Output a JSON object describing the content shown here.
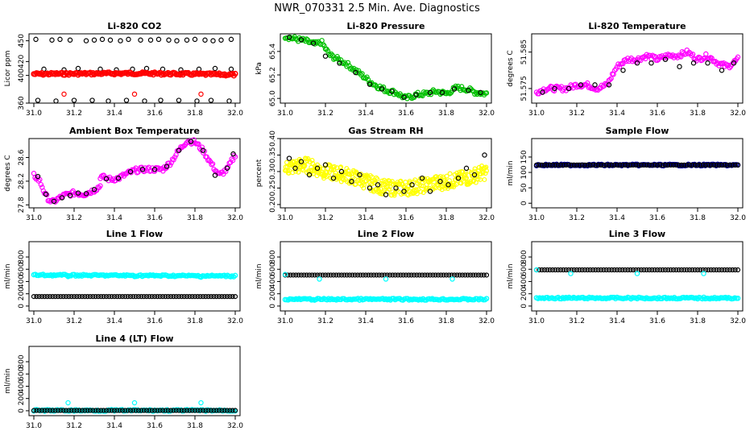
{
  "figure_title": "NWR_070331  2.5 Min. Ave. Diagnostics",
  "chart_data": [
    {
      "id": "co2",
      "type": "scatter",
      "title": "Li-820 CO2",
      "ylabel": "Licor ppm",
      "xlim": [
        31.0,
        32.0
      ],
      "ylim": [
        360,
        460
      ],
      "xticks": [
        "31.0",
        "31.2",
        "31.4",
        "31.6",
        "31.8",
        "32.0"
      ],
      "yticks": [
        "360",
        "400",
        "420",
        "450"
      ],
      "series": [
        {
          "color": "#000000",
          "style": "open-circle",
          "x": [
            31.01,
            31.09,
            31.13,
            31.18,
            31.26,
            31.3,
            31.34,
            31.38,
            31.43,
            31.47,
            31.53,
            31.58,
            31.62,
            31.67,
            31.71,
            31.76,
            31.8,
            31.85,
            31.89,
            31.93,
            31.98
          ],
          "y": [
            452,
            451,
            452,
            451,
            450,
            451,
            452,
            451,
            450,
            452,
            451,
            451,
            452,
            451,
            450,
            451,
            452,
            451,
            450,
            451,
            452
          ]
        },
        {
          "color": "#000000",
          "style": "open-circle",
          "x": [
            31.05,
            31.15,
            31.22,
            31.33,
            31.41,
            31.49,
            31.56,
            31.64,
            31.73,
            31.82,
            31.9,
            31.98
          ],
          "y": [
            409,
            408,
            410,
            409,
            408,
            409,
            410,
            409,
            408,
            409,
            410,
            409
          ]
        },
        {
          "color": "#000000",
          "style": "open-circle",
          "x": [
            31.02,
            31.11,
            31.2,
            31.29,
            31.37,
            31.46,
            31.55,
            31.63,
            31.72,
            31.81,
            31.88,
            31.97
          ],
          "y": [
            364,
            363,
            364,
            364,
            363,
            364,
            363,
            364,
            364,
            363,
            364,
            363
          ]
        },
        {
          "color": "#ff0000",
          "style": "open-circle",
          "x": [
            31.15,
            31.5,
            31.83
          ],
          "y": [
            373,
            373,
            373
          ]
        },
        {
          "color": "#ff0000",
          "style": "band",
          "x": [
            31.0,
            31.25,
            31.5,
            31.75,
            32.0
          ],
          "y": [
            402,
            402.5,
            403,
            402,
            401
          ]
        }
      ]
    },
    {
      "id": "pressure",
      "type": "scatter",
      "title": "Li-820 Pressure",
      "ylabel": "kPa",
      "xlim": [
        31.0,
        32.0
      ],
      "ylim": [
        64.96,
        65.55
      ],
      "xticks": [
        "31.0",
        "31.2",
        "31.4",
        "31.6",
        "31.8",
        "32.0"
      ],
      "yticks": [
        "65.0",
        "65.2",
        "65.4"
      ],
      "series": [
        {
          "color": "#00c000",
          "style": "dense-line",
          "x": [
            31.0,
            31.04,
            31.1,
            31.15,
            31.18,
            31.22,
            31.3,
            31.38,
            31.44,
            31.5,
            31.55,
            31.6,
            31.65,
            31.7,
            31.75,
            31.8,
            31.85,
            31.9,
            31.95,
            32.0
          ],
          "y": [
            65.53,
            65.51,
            65.49,
            65.46,
            65.48,
            65.37,
            65.3,
            65.2,
            65.12,
            65.07,
            65.05,
            65.0,
            65.03,
            65.04,
            65.06,
            65.04,
            65.09,
            65.08,
            65.05,
            65.04
          ]
        },
        {
          "color": "#000000",
          "style": "open-circle",
          "x": [
            31.02,
            31.08,
            31.14,
            31.2,
            31.27,
            31.35,
            31.42,
            31.48,
            31.53,
            31.59,
            31.65,
            31.72,
            31.78,
            31.84,
            31.91,
            31.97
          ],
          "y": [
            65.52,
            65.5,
            65.47,
            65.36,
            65.3,
            65.22,
            65.12,
            65.08,
            65.06,
            65.01,
            65.03,
            65.05,
            65.05,
            65.08,
            65.07,
            65.05
          ]
        }
      ]
    },
    {
      "id": "temp",
      "type": "scatter",
      "title": "Li-820 Temperature",
      "ylabel": "degrees C",
      "xlim": [
        31.0,
        32.0
      ],
      "ylim": [
        51.571,
        51.59
      ],
      "xticks": [
        "31.0",
        "31.2",
        "31.4",
        "31.6",
        "31.8",
        "32.0"
      ],
      "yticks": [
        "51.575",
        "51.585"
      ],
      "series": [
        {
          "color": "#ff00ff",
          "style": "dense-line",
          "x": [
            31.0,
            31.05,
            31.1,
            31.15,
            31.2,
            31.25,
            31.3,
            31.35,
            31.4,
            31.45,
            31.5,
            31.55,
            31.6,
            31.65,
            31.7,
            31.75,
            31.8,
            31.85,
            31.9,
            31.95,
            32.0
          ],
          "y": [
            51.574,
            51.575,
            51.575,
            51.575,
            51.576,
            51.576,
            51.575,
            51.576,
            51.581,
            51.583,
            51.583,
            51.584,
            51.583,
            51.584,
            51.584,
            51.585,
            51.583,
            51.584,
            51.582,
            51.581,
            51.583
          ]
        },
        {
          "color": "#000000",
          "style": "open-circle",
          "x": [
            31.03,
            31.09,
            31.16,
            31.22,
            31.29,
            31.36,
            31.43,
            31.5,
            31.57,
            31.64,
            31.71,
            31.78,
            31.85,
            31.92,
            31.98
          ],
          "y": [
            51.574,
            51.575,
            51.575,
            51.576,
            51.576,
            51.576,
            51.58,
            51.582,
            51.582,
            51.583,
            51.581,
            51.582,
            51.582,
            51.58,
            51.582
          ]
        }
      ]
    },
    {
      "id": "ambient",
      "type": "scatter",
      "title": "Ambient Box Temperature",
      "ylabel": "degrees C",
      "xlim": [
        31.0,
        32.0
      ],
      "ylim": [
        27.75,
        28.92
      ],
      "xticks": [
        "31.0",
        "31.2",
        "31.4",
        "31.6",
        "31.8",
        "32.0"
      ],
      "yticks": [
        "27.8",
        "28.2",
        "28.6"
      ],
      "series": [
        {
          "color": "#ff00ff",
          "style": "dense-line",
          "x": [
            31.0,
            31.03,
            31.06,
            31.09,
            31.12,
            31.15,
            31.2,
            31.25,
            31.3,
            31.33
          ],
          "y": [
            28.3,
            28.2,
            27.95,
            27.84,
            27.9,
            27.96,
            28.0,
            27.98,
            28.05,
            28.12
          ]
        },
        {
          "color": "#ff00ff",
          "style": "dense-line",
          "x": [
            31.33,
            31.38,
            31.42,
            31.46,
            31.5,
            31.55,
            31.6,
            31.64,
            31.68,
            31.72,
            31.76,
            31.8,
            31.84,
            31.88,
            31.92,
            31.96,
            32.0
          ],
          "y": [
            28.28,
            28.23,
            28.25,
            28.32,
            28.38,
            28.4,
            28.4,
            28.4,
            28.52,
            28.72,
            28.88,
            28.86,
            28.72,
            28.5,
            28.3,
            28.4,
            28.65
          ]
        },
        {
          "color": "#000000",
          "style": "open-circle",
          "x": [
            31.02,
            31.06,
            31.1,
            31.14,
            31.18,
            31.22,
            31.26,
            31.3,
            31.36,
            31.42,
            31.48,
            31.54,
            31.6,
            31.66,
            31.72,
            31.78,
            31.84,
            31.9,
            31.96,
            31.99
          ],
          "y": [
            28.28,
            27.98,
            27.86,
            27.92,
            27.96,
            28.0,
            27.99,
            28.06,
            28.24,
            28.25,
            28.36,
            28.4,
            28.4,
            28.45,
            28.72,
            28.87,
            28.72,
            28.3,
            28.42,
            28.66
          ]
        }
      ]
    },
    {
      "id": "rh",
      "type": "scatter",
      "title": "Gas Stream RH",
      "ylabel": "percent",
      "xlim": [
        31.0,
        32.0
      ],
      "ylim": [
        0.19,
        0.4
      ],
      "xticks": [
        "31.0",
        "31.2",
        "31.4",
        "31.6",
        "31.8",
        "32.0"
      ],
      "yticks": [
        "0.20",
        "0.25",
        "0.30",
        "0.35",
        "0.40"
      ],
      "series": [
        {
          "color": "#ffff00",
          "style": "scatter-noise",
          "x": [
            31.0,
            31.1,
            31.2,
            31.3,
            31.4,
            31.5,
            31.6,
            31.7,
            31.8,
            31.9,
            32.0
          ],
          "y": [
            0.31,
            0.32,
            0.3,
            0.29,
            0.27,
            0.25,
            0.25,
            0.26,
            0.27,
            0.28,
            0.3
          ]
        },
        {
          "color": "#000000",
          "style": "open-circle",
          "x": [
            31.02,
            31.05,
            31.08,
            31.12,
            31.16,
            31.2,
            31.24,
            31.28,
            31.33,
            31.37,
            31.42,
            31.46,
            31.5,
            31.55,
            31.59,
            31.63,
            31.68,
            31.72,
            31.77,
            31.81,
            31.86,
            31.9,
            31.94,
            31.99
          ],
          "y": [
            0.34,
            0.31,
            0.33,
            0.29,
            0.31,
            0.32,
            0.28,
            0.3,
            0.27,
            0.29,
            0.25,
            0.26,
            0.23,
            0.25,
            0.24,
            0.26,
            0.28,
            0.24,
            0.27,
            0.26,
            0.28,
            0.31,
            0.29,
            0.35
          ]
        }
      ]
    },
    {
      "id": "sample",
      "type": "scatter",
      "title": "Sample Flow",
      "ylabel": "ml/min",
      "xlim": [
        31.0,
        32.0
      ],
      "ylim": [
        -15,
        210
      ],
      "xticks": [
        "31.0",
        "31.2",
        "31.4",
        "31.6",
        "31.8",
        "32.0"
      ],
      "yticks": [
        "0",
        "50",
        "100",
        "150"
      ],
      "series": [
        {
          "color": "#0000a0",
          "style": "flat",
          "x": [
            31.0,
            32.0
          ],
          "y": [
            124,
            124
          ]
        },
        {
          "color": "#000000",
          "style": "open-circle-row",
          "x": [
            31.0,
            32.0
          ],
          "y": [
            124,
            124
          ]
        }
      ]
    },
    {
      "id": "line1",
      "type": "scatter",
      "title": "Line 1 Flow",
      "ylabel": "ml/min",
      "xlim": [
        31.0,
        32.0
      ],
      "ylim": [
        -80,
        1050
      ],
      "xticks": [
        "31.0",
        "31.2",
        "31.4",
        "31.6",
        "31.8",
        "32.0"
      ],
      "yticks": [
        "0",
        "200",
        "400",
        "600",
        "800"
      ],
      "series": [
        {
          "color": "#00ffff",
          "style": "flat",
          "x": [
            31.0,
            32.0
          ],
          "y": [
            505,
            490
          ]
        },
        {
          "color": "#00ffff",
          "style": "open-circle",
          "x": [
            31.17,
            31.5,
            31.83
          ],
          "y": [
            480,
            480,
            470
          ]
        },
        {
          "color": "#000000",
          "style": "open-circle-row",
          "x": [
            31.0,
            32.0
          ],
          "y": [
            155,
            155
          ]
        }
      ]
    },
    {
      "id": "line2",
      "type": "scatter",
      "title": "Line 2 Flow",
      "ylabel": "ml/min",
      "xlim": [
        31.0,
        32.0
      ],
      "ylim": [
        -80,
        1050
      ],
      "xticks": [
        "31.0",
        "31.2",
        "31.4",
        "31.6",
        "31.8",
        "32.0"
      ],
      "yticks": [
        "0",
        "200",
        "400",
        "600",
        "800"
      ],
      "series": [
        {
          "color": "#000000",
          "style": "open-circle-row",
          "x": [
            31.0,
            32.0
          ],
          "y": [
            505,
            505
          ]
        },
        {
          "color": "#00ffff",
          "style": "open-circle",
          "x": [
            31.0,
            31.17,
            31.5,
            31.83
          ],
          "y": [
            515,
            440,
            440,
            440
          ]
        },
        {
          "color": "#00ffff",
          "style": "flat",
          "x": [
            31.0,
            32.0
          ],
          "y": [
            110,
            110
          ]
        }
      ]
    },
    {
      "id": "line3",
      "type": "scatter",
      "title": "Line 3 Flow",
      "ylabel": "ml/min",
      "xlim": [
        31.0,
        32.0
      ],
      "ylim": [
        -80,
        1050
      ],
      "xticks": [
        "31.0",
        "31.2",
        "31.4",
        "31.6",
        "31.8",
        "32.0"
      ],
      "yticks": [
        "0",
        "200",
        "400",
        "600",
        "800"
      ],
      "series": [
        {
          "color": "#000000",
          "style": "open-circle-row",
          "x": [
            31.0,
            32.0
          ],
          "y": [
            590,
            590
          ]
        },
        {
          "color": "#00ffff",
          "style": "open-circle",
          "x": [
            31.0,
            31.17,
            31.5,
            31.83
          ],
          "y": [
            590,
            530,
            530,
            530
          ]
        },
        {
          "color": "#00ffff",
          "style": "flat",
          "x": [
            31.0,
            32.0
          ],
          "y": [
            130,
            130
          ]
        }
      ]
    },
    {
      "id": "line4",
      "type": "scatter",
      "title": "Line 4 (LT) Flow",
      "ylabel": "ml/min",
      "xlim": [
        31.0,
        32.0
      ],
      "ylim": [
        -80,
        1050
      ],
      "xticks": [
        "31.0",
        "31.2",
        "31.4",
        "31.6",
        "31.8",
        "32.0"
      ],
      "yticks": [
        "0",
        "200",
        "400",
        "600",
        "800"
      ],
      "series": [
        {
          "color": "#00ffff",
          "style": "flat",
          "x": [
            31.0,
            32.0
          ],
          "y": [
            5,
            5
          ]
        },
        {
          "color": "#000000",
          "style": "open-circle-row",
          "x": [
            31.0,
            32.0
          ],
          "y": [
            5,
            5
          ]
        },
        {
          "color": "#00ffff",
          "style": "open-circle",
          "x": [
            31.17,
            31.5,
            31.83
          ],
          "y": [
            130,
            130,
            130
          ]
        }
      ]
    }
  ]
}
